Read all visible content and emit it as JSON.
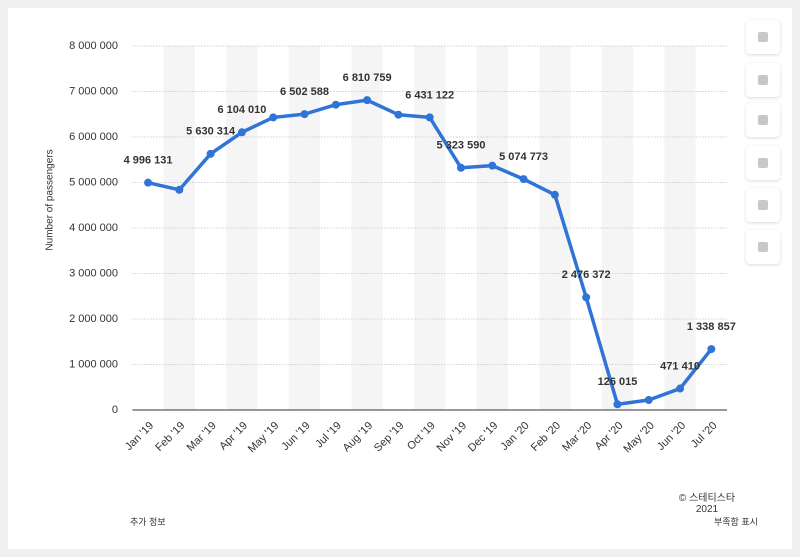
{
  "chart_data": {
    "type": "line",
    "y_axis_label": "Number of passengers",
    "categories": [
      "Jan '19",
      "Feb '19",
      "Mar '19",
      "Apr '19",
      "May '19",
      "Jun '19",
      "Jul '19",
      "Aug '19",
      "Sep '19",
      "Oct '19",
      "Nov '19",
      "Dec '19",
      "Jan '20",
      "Feb '20",
      "Mar '20",
      "Apr '20",
      "May '20",
      "Jun '20",
      "Jul '20"
    ],
    "series": [
      {
        "name": "Passengers",
        "color": "#2f74d6",
        "values": [
          4996131,
          4840000,
          5630314,
          6104010,
          6430000,
          6502588,
          6710000,
          6810759,
          6490000,
          6431122,
          5323590,
          5370000,
          5074773,
          4730000,
          2476372,
          126015,
          220000,
          471410,
          1338857
        ],
        "value_labels": [
          "4 996 131",
          null,
          "5 630 314",
          "6 104 010",
          null,
          "6 502 588",
          null,
          "6 810 759",
          null,
          "6 431 122",
          "5 323 590",
          null,
          "5 074 773",
          null,
          "2 476 372",
          "126 015",
          null,
          "471 410",
          "1 338 857"
        ]
      }
    ],
    "ylim": [
      0,
      8000000
    ],
    "yticks": [
      0,
      {
        "value": 1000000,
        "label": "1 000 000"
      },
      {
        "value": 2000000,
        "label": "2 000 000"
      },
      {
        "value": 3000000,
        "label": "3 000 000"
      },
      {
        "value": 4000000,
        "label": "4 000 000"
      },
      {
        "value": 5000000,
        "label": "5 000 000"
      },
      {
        "value": 6000000,
        "label": "6 000 000"
      },
      {
        "value": 7000000,
        "label": "7 000 000"
      },
      {
        "value": 8000000,
        "label": "8 000 000"
      }
    ],
    "grid": true,
    "footer": {
      "copyright": "© 스테티스타 2021",
      "more_info": "추가 정보",
      "report": "부족함 표시"
    }
  }
}
